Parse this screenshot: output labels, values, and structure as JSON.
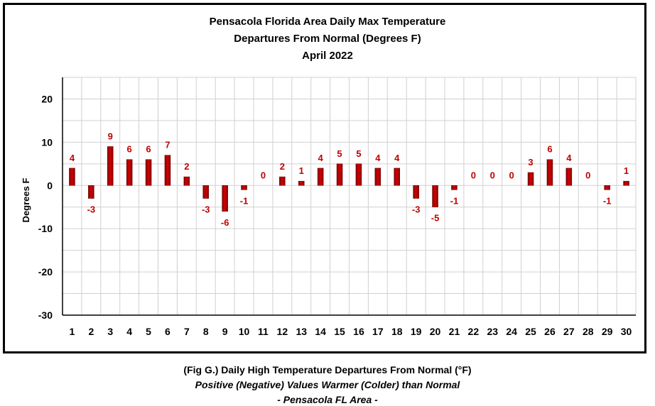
{
  "chart_data": {
    "type": "bar",
    "title": [
      "Pensacola Florida Area Daily Max Temperature",
      "Departures From Normal (Degrees F)",
      "April 2022"
    ],
    "ylabel": "Degrees F",
    "xlabel": "",
    "ylim": [
      -30,
      25
    ],
    "yticks": [
      20,
      10,
      0,
      -10,
      -20,
      -30
    ],
    "grid": true,
    "categories": [
      "1",
      "2",
      "3",
      "4",
      "5",
      "6",
      "7",
      "8",
      "9",
      "10",
      "11",
      "12",
      "13",
      "14",
      "15",
      "16",
      "17",
      "18",
      "19",
      "20",
      "21",
      "22",
      "23",
      "24",
      "25",
      "26",
      "27",
      "28",
      "29",
      "30"
    ],
    "values": [
      4,
      -3,
      9,
      6,
      6,
      7,
      2,
      -3,
      -6,
      -1,
      0,
      2,
      1,
      4,
      5,
      5,
      4,
      4,
      -3,
      -5,
      -1,
      0,
      0,
      0,
      3,
      6,
      4,
      0,
      -1,
      1
    ],
    "bar_color": "#c00000",
    "label_color": "#c00000"
  },
  "caption": {
    "line1": "(Fig G.) Daily High Temperature Departures From Normal (°F)",
    "line2": "Positive (Negative) Values Warmer (Colder) than Normal",
    "line3": "- Pensacola FL Area -"
  }
}
